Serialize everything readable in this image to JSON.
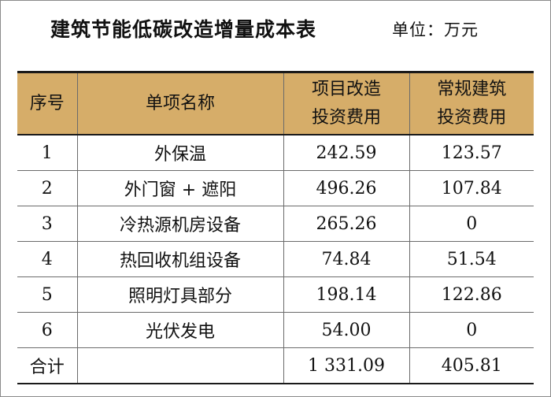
{
  "title": "建筑节能低碳改造增量成本表",
  "unit": "单位：万元",
  "columns": {
    "seq": "序号",
    "name": "单项名称",
    "project_line1": "项目改造",
    "project_line2": "投资费用",
    "regular_line1": "常规建筑",
    "regular_line2": "投资费用"
  },
  "rows": [
    {
      "seq": "1",
      "name": "外保温",
      "project": "242.59",
      "regular": "123.57"
    },
    {
      "seq": "2",
      "name": "外门窗 + 遮阳",
      "project": "496.26",
      "regular": "107.84"
    },
    {
      "seq": "3",
      "name": "冷热源机房设备",
      "project": "265.26",
      "regular": "0"
    },
    {
      "seq": "4",
      "name": "热回收机组设备",
      "project": "74.84",
      "regular": "51.54"
    },
    {
      "seq": "5",
      "name": "照明灯具部分",
      "project": "198.14",
      "regular": "122.86"
    },
    {
      "seq": "6",
      "name": "光伏发电",
      "project": "54.00",
      "regular": "0"
    }
  ],
  "total": {
    "label": "合计",
    "name": "",
    "project": "1 331.09",
    "regular": "405.81"
  },
  "colors": {
    "header_bg": "#d6ad69",
    "rule": "#1a1a1a"
  }
}
